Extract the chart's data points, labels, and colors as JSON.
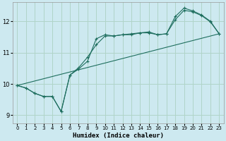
{
  "xlabel": "Humidex (Indice chaleur)",
  "background_color": "#cde9f0",
  "grid_color": "#b0d4c8",
  "line_color": "#1e6e5e",
  "xlim": [
    -0.5,
    23.5
  ],
  "ylim": [
    8.75,
    12.6
  ],
  "yticks": [
    9,
    10,
    11,
    12
  ],
  "xticks": [
    0,
    1,
    2,
    3,
    4,
    5,
    6,
    7,
    8,
    9,
    10,
    11,
    12,
    13,
    14,
    15,
    16,
    17,
    18,
    19,
    20,
    21,
    22,
    23
  ],
  "series1_x": [
    0,
    1,
    2,
    3,
    4,
    5,
    6,
    7,
    8,
    9,
    10,
    11,
    12,
    13,
    14,
    15,
    16,
    17,
    18,
    19,
    20,
    21,
    22,
    23
  ],
  "series1_y": [
    9.95,
    9.87,
    9.7,
    9.6,
    9.6,
    9.12,
    10.28,
    10.48,
    10.72,
    11.44,
    11.57,
    11.53,
    11.57,
    11.57,
    11.63,
    11.63,
    11.57,
    11.6,
    12.05,
    12.35,
    12.3,
    12.18,
    11.98,
    11.6
  ],
  "series2_x": [
    0,
    1,
    2,
    3,
    4,
    5,
    6,
    7,
    8,
    9,
    10,
    11,
    12,
    13,
    14,
    15,
    16,
    17,
    18,
    19,
    20,
    21,
    22,
    23
  ],
  "series2_y": [
    9.95,
    9.87,
    9.7,
    9.6,
    9.6,
    9.12,
    10.28,
    10.52,
    10.85,
    11.25,
    11.53,
    11.53,
    11.57,
    11.6,
    11.63,
    11.66,
    11.57,
    11.6,
    12.15,
    12.42,
    12.33,
    12.2,
    12.0,
    11.6
  ],
  "series3_x": [
    0,
    23
  ],
  "series3_y": [
    9.95,
    11.6
  ],
  "figwidth": 3.2,
  "figheight": 2.0,
  "dpi": 100
}
